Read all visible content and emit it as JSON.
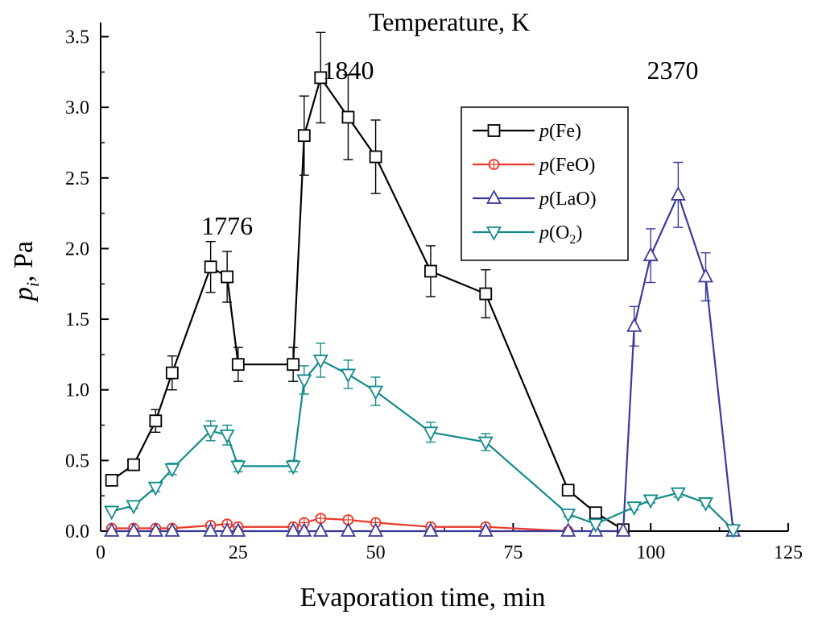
{
  "chart_data": {
    "type": "line",
    "title": "Temperature, K",
    "xlabel": "Evaporation time, min",
    "ylabel_main": "p",
    "ylabel_sub": "i",
    "ylabel_rest": ", Pa",
    "xlim": [
      0,
      125
    ],
    "ylim": [
      0,
      3.6
    ],
    "x_ticks": [
      0,
      25,
      50,
      75,
      100,
      125
    ],
    "y_ticks": [
      0.0,
      0.5,
      1.0,
      1.5,
      2.0,
      2.5,
      3.0,
      3.5
    ],
    "grid": false,
    "legend_position": "upper-right-center",
    "temperature_labels": [
      {
        "text": "1776",
        "x": 23,
        "y": 2.1
      },
      {
        "text": "1840",
        "x": 45,
        "y": 3.2
      },
      {
        "text": "2370",
        "x": 104,
        "y": 3.2
      }
    ],
    "series": [
      {
        "name": "Fe",
        "label_prefix": "p(",
        "label_main": "Fe",
        "label_sub": "",
        "label_suffix": ")",
        "color": "#000000",
        "marker": "square",
        "x": [
          2,
          6,
          10,
          13,
          20,
          23,
          25,
          35,
          37,
          40,
          45,
          50,
          60,
          70,
          85,
          90,
          95
        ],
        "y": [
          0.36,
          0.47,
          0.78,
          1.12,
          1.87,
          1.8,
          1.18,
          1.18,
          2.8,
          3.21,
          2.93,
          2.65,
          1.84,
          1.68,
          0.29,
          0.13,
          0.01
        ],
        "err": [
          0,
          0,
          0.08,
          0.12,
          0.18,
          0.18,
          0.12,
          0.12,
          0.28,
          0.32,
          0.3,
          0.26,
          0.18,
          0.17,
          0.03,
          0.04,
          0
        ]
      },
      {
        "name": "FeO",
        "label_prefix": "p(",
        "label_main": "FeO",
        "label_sub": "",
        "label_suffix": ")",
        "color": "#e8392b",
        "marker": "circle",
        "x": [
          2,
          6,
          10,
          13,
          20,
          23,
          25,
          35,
          37,
          40,
          45,
          50,
          60,
          70,
          85
        ],
        "y": [
          0.02,
          0.02,
          0.02,
          0.02,
          0.04,
          0.05,
          0.03,
          0.03,
          0.06,
          0.09,
          0.08,
          0.06,
          0.03,
          0.03,
          0.0
        ],
        "err": [
          0,
          0,
          0,
          0,
          0.01,
          0.01,
          0,
          0,
          0.01,
          0.02,
          0.02,
          0.01,
          0,
          0,
          0
        ]
      },
      {
        "name": "LaO",
        "label_prefix": "p(",
        "label_main": "LaO",
        "label_sub": "",
        "label_suffix": ")",
        "color": "#3a3a9c",
        "marker": "triangle-up",
        "x": [
          2,
          6,
          10,
          13,
          20,
          23,
          25,
          35,
          37,
          40,
          45,
          50,
          60,
          70,
          85,
          90,
          95,
          97,
          100,
          105,
          110,
          115
        ],
        "y": [
          0.0,
          0.0,
          0.0,
          0.0,
          0.0,
          0.0,
          0.0,
          0.0,
          0.0,
          0.0,
          0.0,
          0.0,
          0.0,
          0.0,
          0.0,
          0.0,
          0.0,
          1.45,
          1.95,
          2.38,
          1.8,
          0.0
        ],
        "err": [
          0,
          0,
          0,
          0,
          0,
          0,
          0,
          0,
          0,
          0,
          0,
          0,
          0,
          0,
          0,
          0,
          0,
          0.14,
          0.19,
          0.23,
          0.17,
          0
        ]
      },
      {
        "name": "O2",
        "label_prefix": "p(",
        "label_main": "O",
        "label_sub": "2",
        "label_suffix": ")",
        "color": "#138a8a",
        "marker": "triangle-down",
        "x": [
          2,
          6,
          10,
          13,
          20,
          23,
          25,
          35,
          37,
          40,
          45,
          50,
          60,
          70,
          85,
          90,
          97,
          100,
          105,
          110,
          115
        ],
        "y": [
          0.14,
          0.18,
          0.31,
          0.44,
          0.71,
          0.68,
          0.46,
          0.46,
          1.07,
          1.21,
          1.11,
          0.99,
          0.7,
          0.63,
          0.12,
          0.05,
          0.17,
          0.22,
          0.27,
          0.2,
          0.01
        ],
        "err": [
          0,
          0.02,
          0.03,
          0.04,
          0.07,
          0.07,
          0.04,
          0.04,
          0.1,
          0.12,
          0.1,
          0.1,
          0.07,
          0.06,
          0.02,
          0.01,
          0.02,
          0.02,
          0.03,
          0.02,
          0
        ]
      }
    ]
  }
}
